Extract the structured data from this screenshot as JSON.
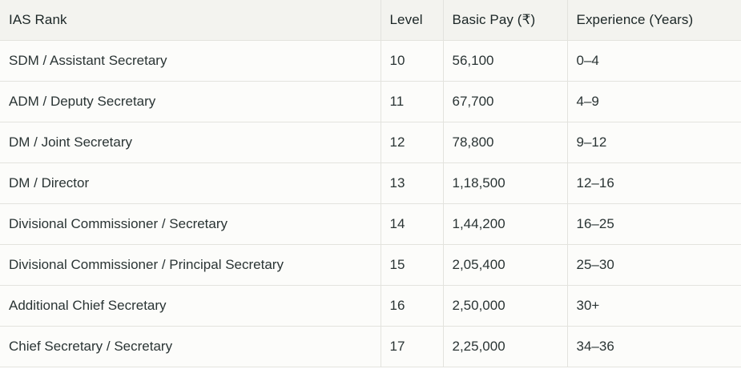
{
  "table": {
    "headers": [
      "IAS Rank",
      "Level",
      "Basic Pay (₹)",
      "Experience (Years)"
    ],
    "rows": [
      [
        "SDM / Assistant Secretary",
        "10",
        "56,100",
        "0–4"
      ],
      [
        "ADM / Deputy Secretary",
        "11",
        "67,700",
        "4–9"
      ],
      [
        "DM / Joint Secretary",
        "12",
        "78,800",
        "9–12"
      ],
      [
        "DM / Director",
        "13",
        "1,18,500",
        "12–16"
      ],
      [
        "Divisional Commissioner / Secretary",
        "14",
        "1,44,200",
        "16–25"
      ],
      [
        "Divisional Commissioner / Principal Secretary",
        "15",
        "2,05,400",
        "25–30"
      ],
      [
        "Additional Chief Secretary",
        "16",
        "2,50,000",
        "30+"
      ],
      [
        "Chief Secretary / Secretary",
        "17",
        "2,25,000",
        "34–36"
      ]
    ]
  }
}
